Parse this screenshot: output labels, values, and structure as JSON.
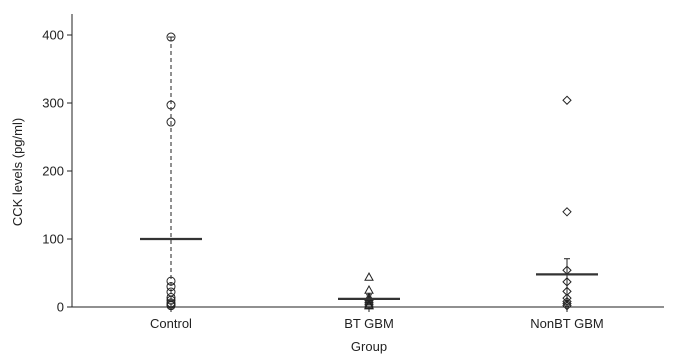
{
  "chart_data": {
    "type": "scatter",
    "title": "",
    "xlabel": "Group",
    "ylabel": "CCK levels (pg/ml)",
    "categories": [
      "Control",
      "BT GBM",
      "NonBT GBM"
    ],
    "yticks": [
      0,
      100,
      200,
      300,
      400
    ],
    "ylim": [
      0,
      420
    ],
    "grid": false,
    "legend": "none",
    "series": [
      {
        "category": "Control",
        "marker": "circle",
        "points": [
          397,
          297,
          272,
          38,
          30,
          22,
          14,
          10,
          6,
          4,
          2
        ],
        "mean": 100,
        "error_low": 0,
        "error_high": 397,
        "error_style": "dashed"
      },
      {
        "category": "BT GBM",
        "marker": "triangle",
        "points": [
          44,
          25,
          14,
          11,
          8,
          5,
          3,
          2
        ],
        "mean": 12,
        "error_low": 2,
        "error_high": 18,
        "error_style": "solid"
      },
      {
        "category": "NonBT GBM",
        "marker": "diamond",
        "points": [
          304,
          140,
          54,
          37,
          23,
          13,
          8,
          5,
          2
        ],
        "mean": 48,
        "error_low": 0,
        "error_high": 71,
        "error_style": "solid"
      }
    ],
    "colors": {
      "marker": "#222222",
      "axis": "#222222",
      "mean_line": "#333333"
    }
  }
}
